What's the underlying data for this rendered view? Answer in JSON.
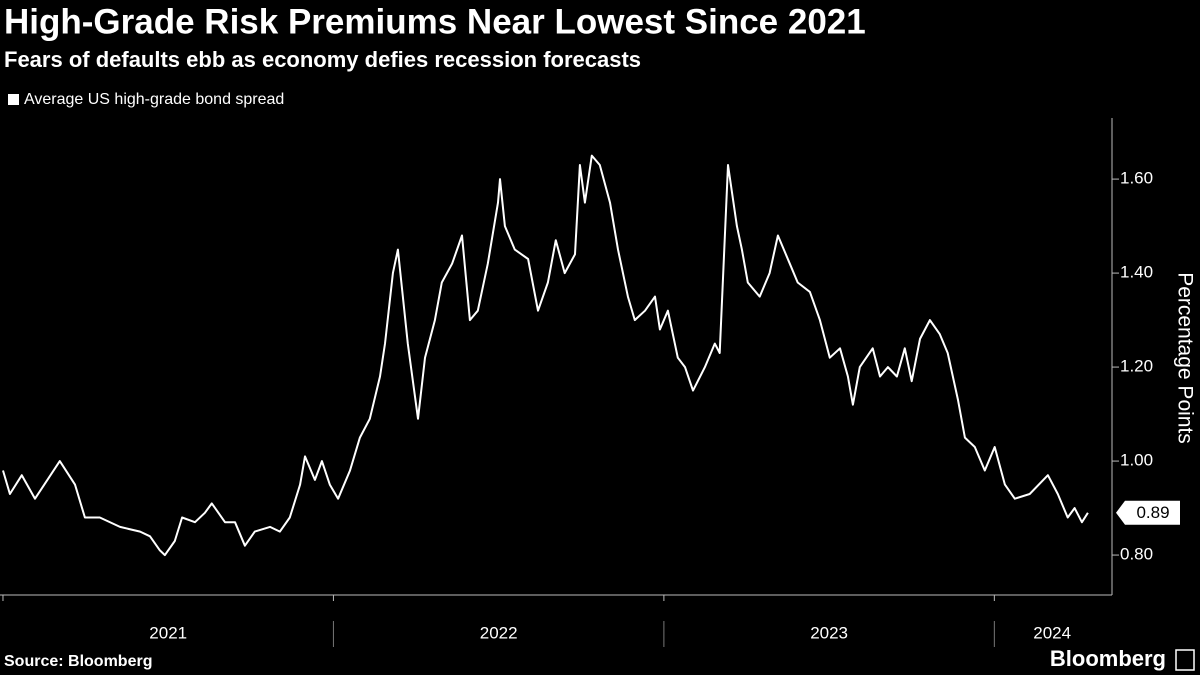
{
  "chart_data": {
    "type": "line",
    "title": "High-Grade Risk Premiums Near Lowest Since 2021",
    "subtitle": "Fears of defaults ebb as economy defies recession forecasts",
    "y_axis_label": "Percentage Points",
    "source": "Source: Bloomberg",
    "brand": "Bloomberg",
    "xlim": [
      2020.991,
      2024.35
    ],
    "xticks": [
      2021,
      2022,
      2023,
      2024
    ],
    "ylim": [
      0.715,
      1.73
    ],
    "yticks": [
      {
        "value": 0.8,
        "label": "0.80"
      },
      {
        "value": 1.0,
        "label": "1.00"
      },
      {
        "value": 1.2,
        "label": "1.20"
      },
      {
        "value": 1.4,
        "label": "1.40"
      },
      {
        "value": 1.6,
        "label": "1.60"
      }
    ],
    "series": [
      {
        "name": "Average US high-grade bond spread",
        "color": "#ffffff",
        "x": [
          2021.0,
          2021.021,
          2021.057,
          2021.097,
          2021.172,
          2021.218,
          2021.248,
          2021.293,
          2021.354,
          2021.415,
          2021.445,
          2021.475,
          2021.49,
          2021.52,
          2021.542,
          2021.581,
          2021.611,
          2021.632,
          2021.672,
          2021.702,
          2021.732,
          2021.762,
          2021.808,
          2021.838,
          2021.868,
          2021.899,
          2021.914,
          2021.944,
          2021.965,
          2021.989,
          2022.014,
          2022.05,
          2022.08,
          2022.11,
          2022.141,
          2022.156,
          2022.18,
          2022.195,
          2022.225,
          2022.256,
          2022.277,
          2022.307,
          2022.328,
          2022.359,
          2022.389,
          2022.413,
          2022.437,
          2022.467,
          2022.498,
          2022.504,
          2022.519,
          2022.549,
          2022.589,
          2022.619,
          2022.649,
          2022.673,
          2022.7,
          2022.731,
          2022.746,
          2022.761,
          2022.782,
          2022.806,
          2022.837,
          2022.861,
          2022.891,
          2022.912,
          2022.943,
          2022.973,
          2022.988,
          2023.012,
          2023.042,
          2023.064,
          2023.088,
          2023.124,
          2023.154,
          2023.169,
          2023.194,
          2023.221,
          2023.236,
          2023.254,
          2023.29,
          2023.32,
          2023.345,
          2023.381,
          2023.405,
          2023.442,
          2023.472,
          2023.502,
          2023.533,
          2023.557,
          2023.572,
          2023.593,
          2023.632,
          2023.654,
          2023.678,
          2023.705,
          2023.729,
          2023.75,
          2023.775,
          2023.805,
          2023.835,
          2023.859,
          2023.89,
          2023.911,
          2023.941,
          2023.971,
          2024.001,
          2024.032,
          2024.062,
          2024.107,
          2024.162,
          2024.192,
          2024.222,
          2024.243,
          2024.265,
          2024.283
        ],
        "values": [
          0.98,
          0.93,
          0.97,
          0.92,
          1.0,
          0.95,
          0.88,
          0.88,
          0.86,
          0.85,
          0.84,
          0.81,
          0.8,
          0.83,
          0.88,
          0.87,
          0.89,
          0.91,
          0.87,
          0.87,
          0.82,
          0.85,
          0.86,
          0.85,
          0.88,
          0.95,
          1.01,
          0.96,
          1.0,
          0.95,
          0.92,
          0.98,
          1.05,
          1.09,
          1.18,
          1.25,
          1.4,
          1.45,
          1.25,
          1.09,
          1.22,
          1.3,
          1.38,
          1.42,
          1.48,
          1.3,
          1.32,
          1.42,
          1.55,
          1.6,
          1.5,
          1.45,
          1.43,
          1.32,
          1.38,
          1.47,
          1.4,
          1.44,
          1.63,
          1.55,
          1.65,
          1.63,
          1.55,
          1.45,
          1.35,
          1.3,
          1.32,
          1.35,
          1.28,
          1.32,
          1.22,
          1.2,
          1.15,
          1.2,
          1.25,
          1.23,
          1.63,
          1.5,
          1.45,
          1.38,
          1.35,
          1.4,
          1.48,
          1.42,
          1.38,
          1.36,
          1.3,
          1.22,
          1.24,
          1.18,
          1.12,
          1.2,
          1.24,
          1.18,
          1.2,
          1.18,
          1.24,
          1.17,
          1.26,
          1.3,
          1.27,
          1.23,
          1.13,
          1.05,
          1.03,
          0.98,
          1.03,
          0.95,
          0.92,
          0.93,
          0.97,
          0.93,
          0.88,
          0.9,
          0.87,
          0.89
        ]
      }
    ]
  }
}
